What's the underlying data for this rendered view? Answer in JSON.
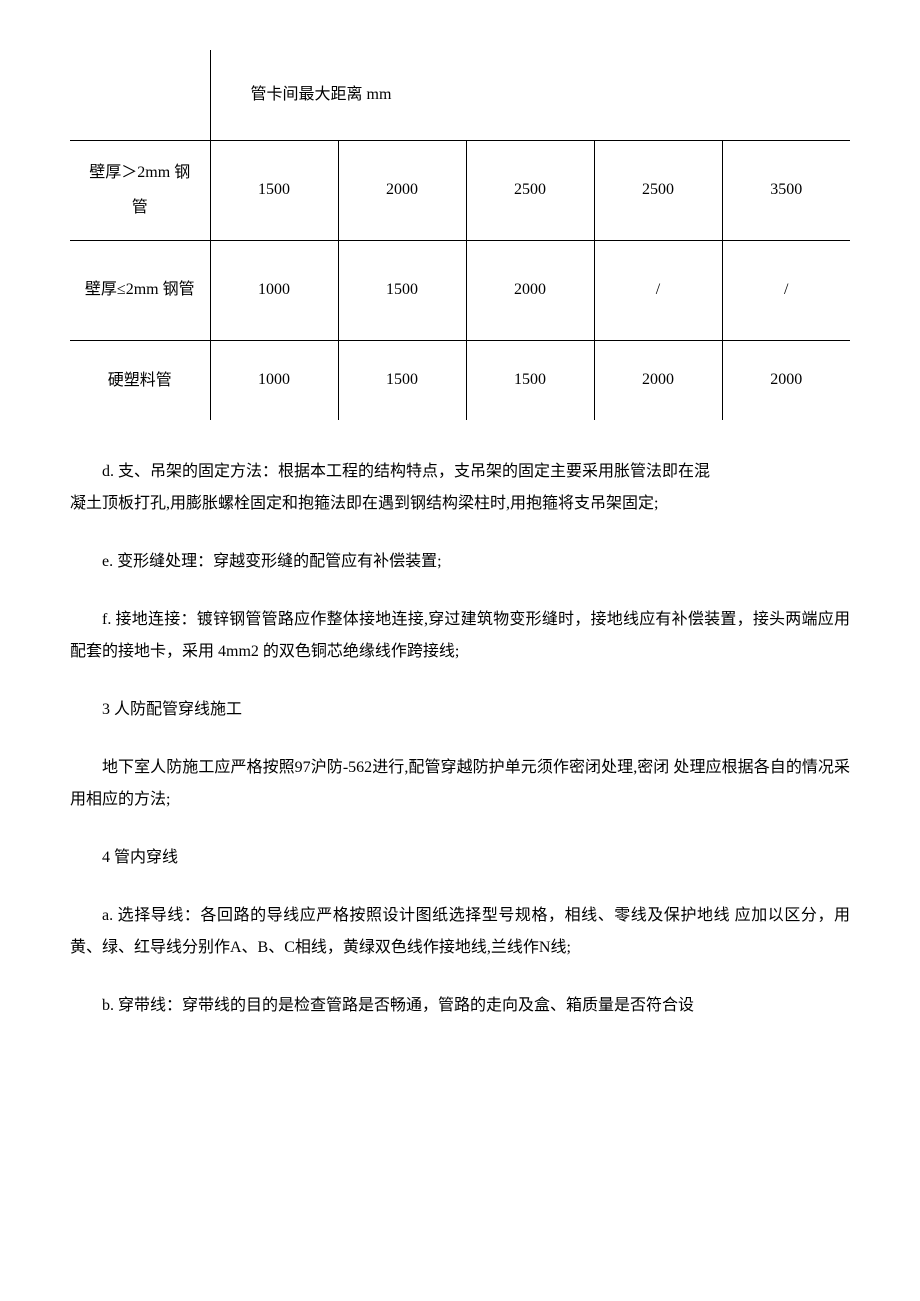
{
  "table": {
    "header_title": "管卡间最大距离 mm",
    "rows": [
      {
        "label": "壁厚＞2mm 钢管",
        "cells": [
          "1500",
          "2000",
          "2500",
          "2500",
          "3500"
        ]
      },
      {
        "label": "壁厚≤2mm 钢管",
        "cells": [
          "1000",
          "1500",
          "2000",
          "/",
          "/"
        ]
      },
      {
        "label": "硬塑料管",
        "cells": [
          "1000",
          "1500",
          "1500",
          "2000",
          "2000"
        ]
      }
    ]
  },
  "paragraphs": {
    "d1": "d. 支、吊架的固定方法：根据本工程的结构特点，支吊架的固定主要采用胀管法即在混",
    "d2": "凝土顶板打孔,用膨胀螺栓固定和抱箍法即在遇到钢结构梁柱时,用抱箍将支吊架固定;",
    "e": "e. 变形缝处理：穿越变形缝的配管应有补偿装置;",
    "f": "f. 接地连接：镀锌钢管管路应作整体接地连接,穿过建筑物变形缝时，接地线应有补偿装置，接头两端应用配套的接地卡，采用 4mm2 的双色铜芯绝缘线作跨接线;",
    "h3": "3 人防配管穿线施工",
    "p3": "地下室人防施工应严格按照97沪防-562进行,配管穿越防护单元须作密闭处理,密闭 处理应根据各自的情况采用相应的方法;",
    "h4": "4 管内穿线",
    "a": "a.  选择导线：各回路的导线应严格按照设计图纸选择型号规格，相线、零线及保护地线 应加以区分，用黄、绿、红导线分别作A、B、C相线，黄绿双色线作接地线,兰线作N线;",
    "b": "b.  穿带线：穿带线的目的是检查管路是否畅通，管路的走向及盒、箱质量是否符合设"
  }
}
